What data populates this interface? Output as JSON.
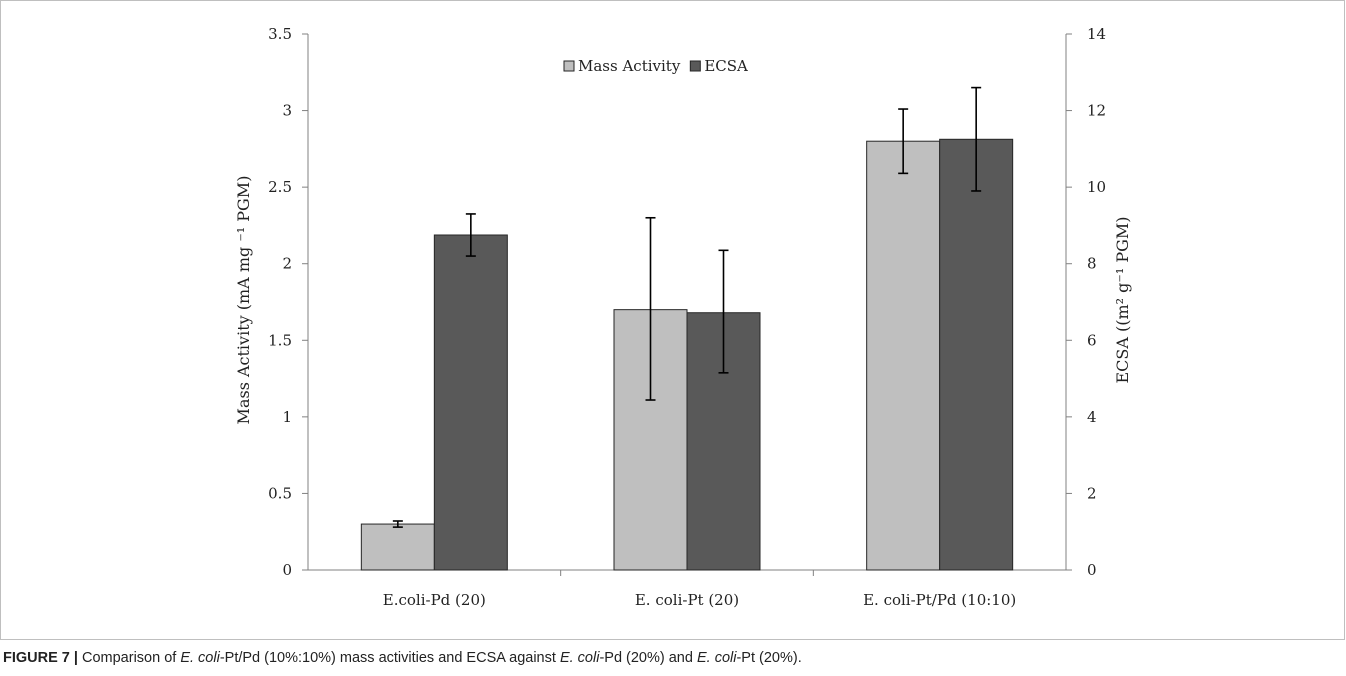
{
  "chart_data": {
    "type": "bar",
    "categories": [
      "E.coli-Pd (20)",
      "E. coli-Pt (20)",
      "E. coli-Pt/Pd (10:10)"
    ],
    "series": [
      {
        "name": "Mass Activity",
        "axis": "left",
        "color": "#bfbfbf",
        "values": [
          0.3,
          1.7,
          2.8
        ],
        "err_low": [
          0.28,
          1.11,
          2.59
        ],
        "err_high": [
          0.32,
          2.3,
          3.01
        ]
      },
      {
        "name": "ECSA",
        "axis": "right",
        "color": "#595959",
        "values": [
          8.75,
          6.72,
          11.25
        ],
        "err_low": [
          8.2,
          5.15,
          9.9
        ],
        "err_high": [
          9.3,
          8.35,
          12.6
        ]
      }
    ],
    "y_left": {
      "label": "Mass Activity (mA mg ⁻¹ PGM)",
      "range": [
        0,
        3.5
      ],
      "ticks": [
        0,
        0.5,
        1,
        1.5,
        2,
        2.5,
        3,
        3.5
      ],
      "tick_labels": [
        "0",
        "0.5",
        "1",
        "1.5",
        "2",
        "2.5",
        "3",
        "3.5"
      ]
    },
    "y_right": {
      "label": "ECSA ((m² g⁻¹ PGM)",
      "range": [
        0,
        14
      ],
      "ticks": [
        0,
        2,
        4,
        6,
        8,
        10,
        12,
        14
      ],
      "tick_labels": [
        "0",
        "2",
        "4",
        "6",
        "8",
        "10",
        "12",
        "14"
      ]
    },
    "legend": {
      "placement": "top-center"
    },
    "grid": false
  },
  "caption": {
    "label": "FIGURE 7 |",
    "parts": [
      {
        "text": " Comparison of ",
        "italic": false
      },
      {
        "text": "E. coli",
        "italic": true
      },
      {
        "text": "-Pt/Pd (10%:10%) mass activities and ECSA against ",
        "italic": false
      },
      {
        "text": "E. coli",
        "italic": true
      },
      {
        "text": "-Pd (20%) and ",
        "italic": false
      },
      {
        "text": "E. coli",
        "italic": true
      },
      {
        "text": "-Pt (20%).",
        "italic": false
      }
    ]
  }
}
